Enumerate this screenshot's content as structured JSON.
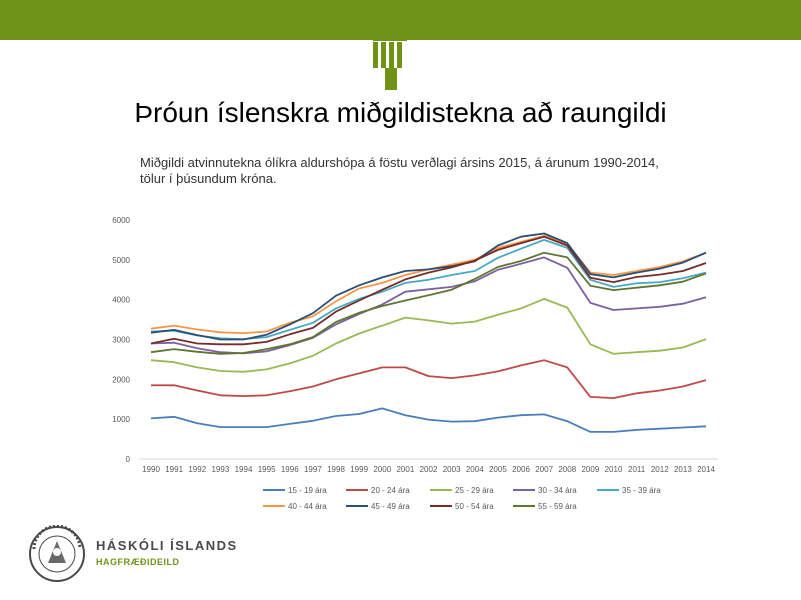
{
  "header": {
    "title": "Þróun íslenskra miðgildistekna að raungildi",
    "subtitle_line1": "Miðgildi atvinnutekna ólíkra aldurshópa á föstu verðlagi ársins 2015, á árunum 1990-2014,",
    "subtitle_line2": "tölur í þúsundum króna."
  },
  "footer": {
    "university": "HÁSKÓLI ÍSLANDS",
    "department": "HAGFRÆÐIDEILD",
    "logo_icon": "university-seal-icon"
  },
  "colors": {
    "topbar": "#6f9317",
    "accent": "#6f9317"
  },
  "chart_data": {
    "type": "line",
    "title": "",
    "xlabel": "",
    "ylabel": "",
    "ylim": [
      0,
      6000
    ],
    "yticks": [
      0,
      1000,
      2000,
      3000,
      4000,
      5000,
      6000
    ],
    "grid": false,
    "legend_position": "bottom",
    "categories": [
      "1990",
      "1991",
      "1992",
      "1993",
      "1994",
      "1995",
      "1996",
      "1997",
      "1998",
      "1999",
      "2000",
      "2001",
      "2002",
      "2003",
      "2004",
      "2005",
      "2006",
      "2007",
      "2008",
      "2009",
      "2010",
      "2011",
      "2012",
      "2013",
      "2014"
    ],
    "series": [
      {
        "name": "15 - 19 ára",
        "color": "#4a7ebb",
        "values": [
          1020,
          1060,
          900,
          800,
          800,
          800,
          880,
          960,
          1080,
          1130,
          1270,
          1100,
          990,
          940,
          950,
          1040,
          1100,
          1120,
          950,
          680,
          680,
          730,
          760,
          790,
          820
        ]
      },
      {
        "name": "20 - 24 ára",
        "color": "#be4b48",
        "values": [
          1850,
          1850,
          1720,
          1600,
          1580,
          1600,
          1700,
          1820,
          2000,
          2150,
          2300,
          2300,
          2080,
          2030,
          2100,
          2200,
          2350,
          2480,
          2300,
          1560,
          1530,
          1650,
          1720,
          1820,
          1980
        ]
      },
      {
        "name": "25 - 29 ára",
        "color": "#98b954",
        "values": [
          2480,
          2430,
          2300,
          2210,
          2190,
          2250,
          2400,
          2590,
          2900,
          3150,
          3350,
          3550,
          3480,
          3400,
          3450,
          3620,
          3780,
          4020,
          3800,
          2880,
          2640,
          2680,
          2720,
          2800,
          3010
        ]
      },
      {
        "name": "30 - 34 ára",
        "color": "#7d60a0",
        "values": [
          2900,
          2920,
          2780,
          2680,
          2650,
          2700,
          2860,
          3040,
          3380,
          3640,
          3880,
          4200,
          4260,
          4320,
          4460,
          4750,
          4900,
          5060,
          4800,
          3920,
          3740,
          3780,
          3820,
          3900,
          4060
        ]
      },
      {
        "name": "35 - 39 ára",
        "color": "#46aac5",
        "values": [
          3200,
          3220,
          3100,
          3030,
          3010,
          3060,
          3240,
          3420,
          3780,
          4020,
          4200,
          4420,
          4500,
          4620,
          4720,
          5050,
          5280,
          5500,
          5300,
          4500,
          4320,
          4410,
          4440,
          4540,
          4680
        ]
      },
      {
        "name": "40 - 44 ára",
        "color": "#f79646",
        "values": [
          3270,
          3350,
          3250,
          3180,
          3160,
          3200,
          3420,
          3580,
          3960,
          4280,
          4420,
          4620,
          4760,
          4880,
          5000,
          5300,
          5450,
          5600,
          5400,
          4680,
          4620,
          4720,
          4820,
          4960,
          5180
        ]
      },
      {
        "name": "45 - 49 ára",
        "color": "#2c4d75",
        "values": [
          3170,
          3240,
          3110,
          3000,
          3000,
          3120,
          3380,
          3660,
          4100,
          4360,
          4560,
          4720,
          4760,
          4840,
          4960,
          5360,
          5580,
          5660,
          5420,
          4640,
          4560,
          4680,
          4780,
          4930,
          5180
        ]
      },
      {
        "name": "50 - 54 ára",
        "color": "#772c2a",
        "values": [
          2900,
          3020,
          2900,
          2880,
          2880,
          2940,
          3130,
          3290,
          3700,
          3980,
          4250,
          4510,
          4680,
          4810,
          4980,
          5250,
          5420,
          5580,
          5360,
          4550,
          4440,
          4570,
          4630,
          4720,
          4920
        ]
      },
      {
        "name": "55 - 59 ára",
        "color": "#5f7530",
        "values": [
          2680,
          2760,
          2690,
          2640,
          2660,
          2760,
          2880,
          3060,
          3440,
          3670,
          3840,
          3980,
          4110,
          4250,
          4520,
          4820,
          4970,
          5180,
          5060,
          4350,
          4240,
          4300,
          4360,
          4450,
          4660
        ]
      }
    ]
  }
}
